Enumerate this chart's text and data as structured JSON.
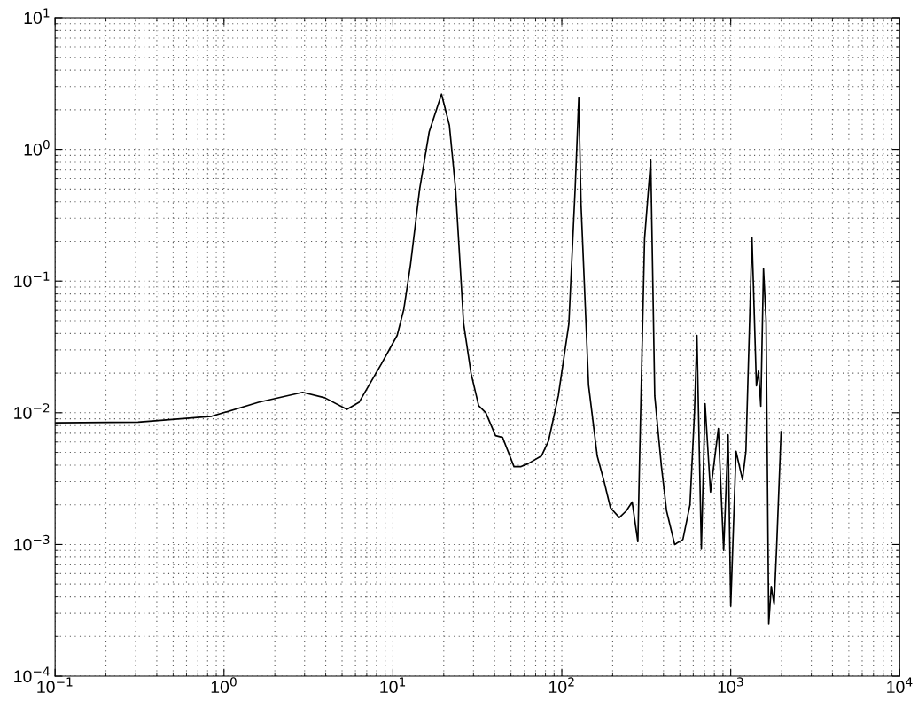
{
  "chart_data": {
    "type": "line",
    "log": "xy",
    "grid": true,
    "line_style": "solid",
    "marker": "none",
    "xlim": [
      0.1,
      10000
    ],
    "ylim": [
      0.0001,
      10
    ],
    "xticks": [
      {
        "value": 0.1,
        "label": "10$^{−1}$"
      },
      {
        "value": 1,
        "label": "10$^{0}$"
      },
      {
        "value": 10,
        "label": "10$^{1}$"
      },
      {
        "value": 100,
        "label": "10$^{2}$"
      },
      {
        "value": 1000,
        "label": "10$^{3}$"
      },
      {
        "value": 10000,
        "label": "10$^{4}$"
      }
    ],
    "yticks": [
      {
        "value": 0.0001,
        "label": "10$^{−4}$"
      },
      {
        "value": 0.001,
        "label": "10$^{−3}$"
      },
      {
        "value": 0.01,
        "label": "10$^{−2}$"
      },
      {
        "value": 0.1,
        "label": "10$^{−1}$"
      },
      {
        "value": 1,
        "label": "10$^{0}$"
      },
      {
        "value": 10,
        "label": "10$^{1}$"
      }
    ],
    "series": [
      {
        "color": "#000000",
        "x": [
          0.1,
          0.31,
          0.845,
          1.6,
          2.92,
          3.95,
          5.34,
          6.3,
          8.55,
          10.6,
          11.6,
          12.7,
          14.4,
          16.4,
          19.4,
          21.6,
          23.5,
          26.2,
          29,
          32.2,
          35.5,
          40.5,
          44.6,
          52.1,
          57.4,
          63,
          75.8,
          83.4,
          95.3,
          110,
          120,
          126,
          130,
          144,
          162,
          178,
          194,
          219,
          241,
          261,
          282,
          289,
          309,
          336,
          355,
          389,
          417,
          466,
          521,
          574,
          610,
          631,
          670,
          705,
          759,
          845,
          908,
          965,
          1000,
          1075,
          1174,
          1230,
          1336,
          1419,
          1460,
          1507,
          1563,
          1619,
          1679,
          1738,
          1807,
          1871,
          1987
        ],
        "values": [
          0.0084,
          0.0085,
          0.0094,
          0.012,
          0.0143,
          0.013,
          0.0106,
          0.012,
          0.0235,
          0.0387,
          0.061,
          0.132,
          0.5,
          1.36,
          2.63,
          1.52,
          0.5,
          0.048,
          0.02,
          0.0113,
          0.01,
          0.0067,
          0.0065,
          0.0039,
          0.0039,
          0.0041,
          0.0047,
          0.0061,
          0.0134,
          0.047,
          0.51,
          2.46,
          0.38,
          0.0162,
          0.0047,
          0.003,
          0.0019,
          0.0016,
          0.0018,
          0.0021,
          0.00105,
          0.0047,
          0.21,
          0.83,
          0.0134,
          0.0039,
          0.0018,
          0.001,
          0.00109,
          0.002,
          0.01,
          0.0387,
          0.00092,
          0.0117,
          0.0025,
          0.0076,
          0.0009,
          0.0068,
          0.00034,
          0.0051,
          0.0031,
          0.0051,
          0.214,
          0.016,
          0.0208,
          0.0112,
          0.124,
          0.05,
          0.00025,
          0.00048,
          0.00035,
          0.00097,
          0.0072
        ]
      }
    ]
  }
}
